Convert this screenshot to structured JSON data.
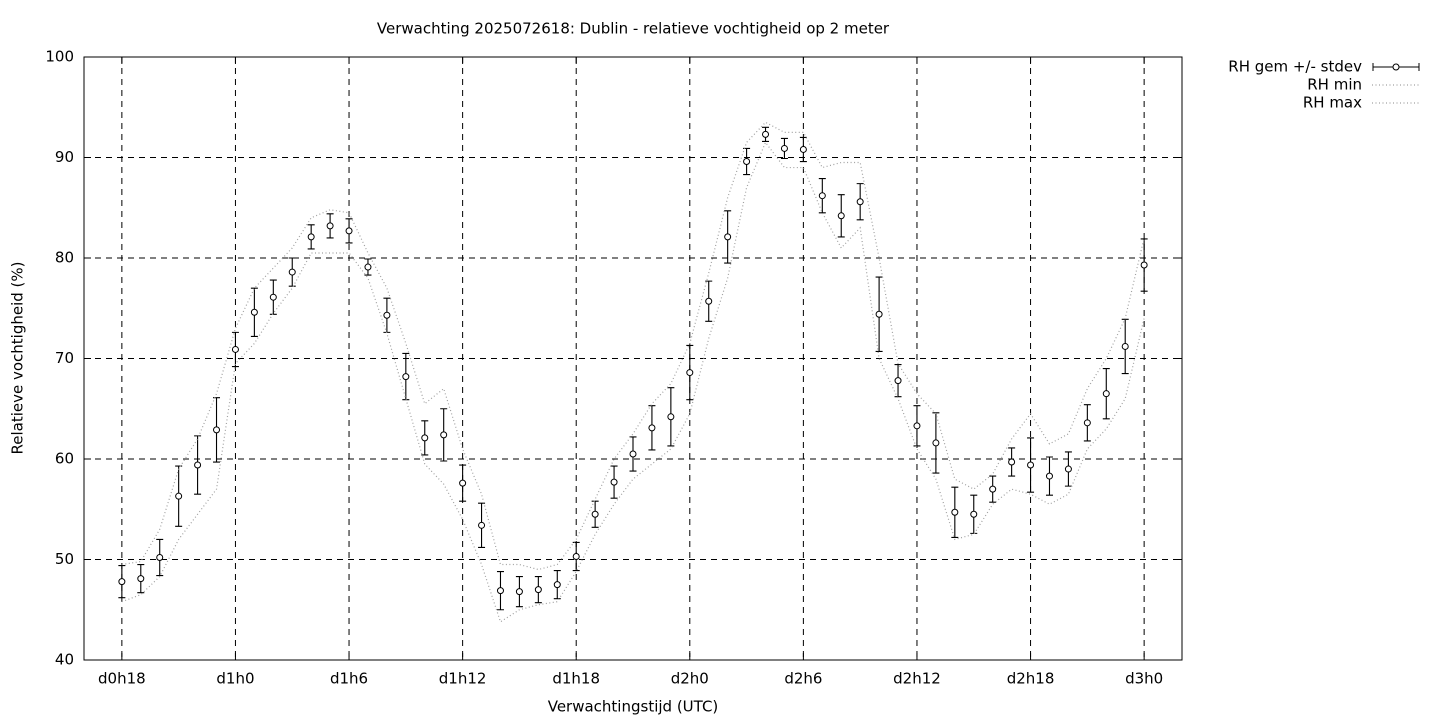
{
  "chart_data": {
    "type": "errorbar",
    "title": "Verwachting 2025072618: Dublin - relatieve vochtigheid op 2 meter",
    "xlabel": "Verwachtingstijd (UTC)",
    "ylabel": "Relatieve vochtigheid (%)",
    "x": [
      18,
      19,
      20,
      21,
      22,
      23,
      24,
      25,
      26,
      27,
      28,
      29,
      30,
      31,
      32,
      33,
      34,
      35,
      36,
      37,
      38,
      39,
      40,
      41,
      42,
      43,
      44,
      45,
      46,
      47,
      48,
      49,
      50,
      51,
      52,
      53,
      54,
      55,
      56,
      57,
      58,
      59,
      60,
      61,
      62,
      63,
      64,
      65,
      66,
      67,
      68,
      69,
      70,
      71,
      72
    ],
    "xlim": [
      16,
      74
    ],
    "xticks": [
      {
        "value": 18,
        "label": "d0h18"
      },
      {
        "value": 24,
        "label": "d1h0"
      },
      {
        "value": 30,
        "label": "d1h6"
      },
      {
        "value": 36,
        "label": "d1h12"
      },
      {
        "value": 42,
        "label": "d1h18"
      },
      {
        "value": 48,
        "label": "d2h0"
      },
      {
        "value": 54,
        "label": "d2h6"
      },
      {
        "value": 60,
        "label": "d2h12"
      },
      {
        "value": 66,
        "label": "d2h18"
      },
      {
        "value": 72,
        "label": "d3h0"
      }
    ],
    "ylim": [
      40,
      100
    ],
    "yticks": [
      40,
      50,
      60,
      70,
      80,
      90,
      100
    ],
    "grid": true,
    "legend": "outside-top-right",
    "series": [
      {
        "name": "RH gem +/- stdev",
        "color": "#000000",
        "style": "errorbar",
        "values": [
          47.8,
          48.1,
          50.2,
          56.3,
          59.4,
          62.9,
          70.9,
          74.6,
          76.1,
          78.6,
          82.1,
          83.2,
          82.7,
          79.1,
          74.3,
          68.2,
          62.1,
          62.4,
          57.6,
          53.4,
          46.9,
          46.8,
          47.0,
          47.5,
          50.3,
          54.5,
          57.7,
          60.5,
          63.1,
          64.2,
          68.6,
          75.7,
          82.1,
          89.6,
          92.3,
          90.9,
          90.8,
          86.2,
          84.2,
          85.6,
          74.4,
          67.8,
          63.3,
          61.6,
          54.7,
          54.5,
          57.0,
          59.7,
          59.4,
          58.3,
          59.0,
          63.6,
          66.5,
          71.2,
          79.3
        ],
        "errors": [
          1.6,
          1.4,
          1.8,
          3.0,
          2.9,
          3.2,
          1.7,
          2.4,
          1.7,
          1.4,
          1.2,
          1.2,
          1.2,
          0.8,
          1.7,
          2.3,
          1.7,
          2.6,
          1.8,
          2.2,
          1.9,
          1.5,
          1.3,
          1.4,
          1.4,
          1.3,
          1.6,
          1.7,
          2.2,
          2.9,
          2.7,
          2.0,
          2.6,
          1.3,
          0.7,
          1.0,
          1.2,
          1.7,
          2.1,
          1.8,
          3.7,
          1.6,
          2.0,
          3.0,
          2.5,
          1.9,
          1.3,
          1.4,
          2.7,
          1.9,
          1.7,
          1.8,
          2.5,
          2.7,
          2.6
        ]
      },
      {
        "name": "RH min",
        "color": "#a0a0a0",
        "style": "dotted",
        "values": [
          45.8,
          46.5,
          48.3,
          52,
          54.5,
          57,
          69.5,
          71.5,
          74.5,
          77,
          80.5,
          80.5,
          80.5,
          78,
          72.5,
          66,
          59.5,
          57.5,
          54,
          49.5,
          43.8,
          45,
          45.5,
          45.8,
          48.8,
          52.5,
          55.5,
          58,
          59.5,
          61,
          64.5,
          72,
          78,
          87,
          91.5,
          89,
          89,
          84.5,
          81,
          83,
          70,
          66,
          61,
          58,
          52,
          52.5,
          55.5,
          57,
          56.5,
          55.5,
          56.5,
          61,
          63,
          66,
          74
        ]
      },
      {
        "name": "RH max",
        "color": "#a0a0a0",
        "style": "dotted",
        "values": [
          49.5,
          49.8,
          53,
          59,
          62,
          66.5,
          73,
          77,
          79,
          81,
          84,
          84.8,
          84.5,
          80.5,
          77,
          71.5,
          65.5,
          67,
          61,
          56.5,
          49.5,
          49.5,
          49,
          49.5,
          52,
          56,
          60,
          62.5,
          65.5,
          67.5,
          71.5,
          78.5,
          86,
          91.5,
          93.5,
          92.5,
          92.5,
          89,
          89.5,
          89.5,
          80,
          69.5,
          66.5,
          64.5,
          58,
          57,
          58.5,
          62,
          64.5,
          61.5,
          62.5,
          67,
          70,
          74,
          82
        ]
      }
    ]
  }
}
